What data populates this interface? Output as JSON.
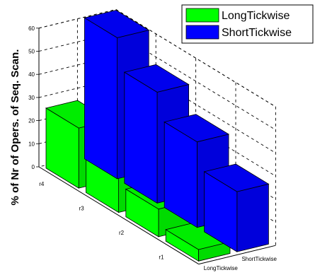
{
  "chart_data": {
    "type": "bar",
    "subtype": "3d-grouped",
    "title": "",
    "ylabel": "% of Nr of Opers. of Seq. Scan.",
    "zlim": [
      0,
      60
    ],
    "z_ticks": [
      "0",
      "10",
      "20",
      "30",
      "40",
      "50",
      "60"
    ],
    "grid": true,
    "legend_position": "top-right",
    "rows": [
      "r1",
      "r2",
      "r3",
      "r4"
    ],
    "columns": [
      "LongTickwise",
      "ShortTickwise"
    ],
    "series": [
      {
        "name": "LongTickwise",
        "color": "#00ff00",
        "values": [
          5,
          12,
          18,
          26
        ]
      },
      {
        "name": "ShortTickwise",
        "color": "#0000ff",
        "values": [
          26,
          37,
          48,
          61
        ]
      }
    ]
  }
}
